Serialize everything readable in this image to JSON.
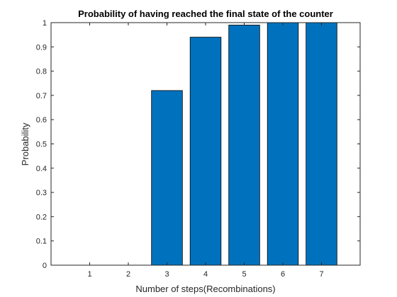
{
  "chart_data": {
    "type": "bar",
    "title": "Probability of having reached the final state of the counter",
    "xlabel": "Number of steps(Recombinations)",
    "ylabel": "Probability",
    "categories": [
      "1",
      "2",
      "3",
      "4",
      "5",
      "6",
      "7"
    ],
    "values": [
      0,
      0,
      0.72,
      0.94,
      0.99,
      1.0,
      1.0
    ],
    "xlim": [
      0,
      8
    ],
    "ylim": [
      0,
      1
    ],
    "yticks": [
      "0",
      "0.1",
      "0.2",
      "0.3",
      "0.4",
      "0.5",
      "0.6",
      "0.7",
      "0.8",
      "0.9",
      "1"
    ],
    "bar_color": "#0072BD",
    "grid": false,
    "box": true
  }
}
